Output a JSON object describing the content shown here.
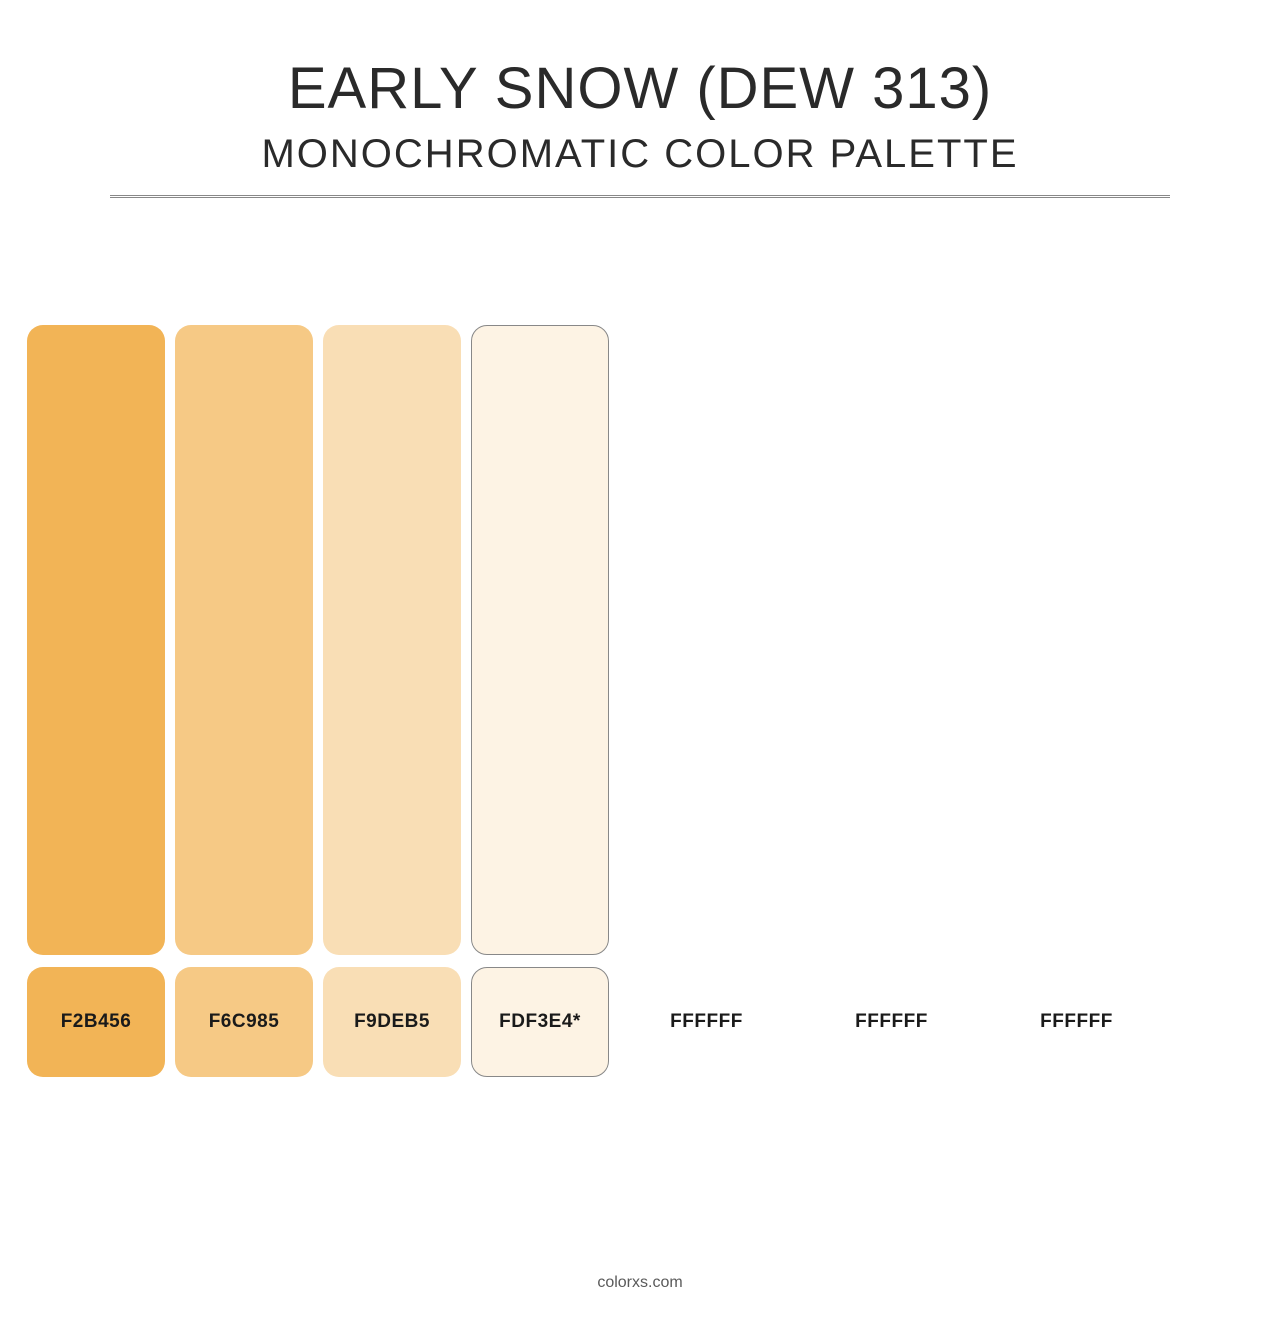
{
  "header": {
    "title": "EARLY SNOW (DEW 313)",
    "subtitle": "MONOCHROMATIC COLOR PALETTE",
    "title_fontsize": 58,
    "subtitle_fontsize": 40,
    "text_color": "#2a2a2a",
    "divider_color": "#888888"
  },
  "palette": {
    "type": "infographic",
    "background_color": "#ffffff",
    "swatch_tall_width": 138,
    "swatch_tall_height": 630,
    "swatch_small_width": 138,
    "swatch_small_height": 110,
    "swatch_border_radius": 16,
    "swatch_gap": 10,
    "label_fontsize": 19,
    "label_fontweight": 700,
    "label_color": "#1a1a1a",
    "border_color": "#888888",
    "plain_cell_widths": [
      175,
      175,
      175
    ],
    "swatches": [
      {
        "hex": "F2B456",
        "fill": "#f2b456",
        "bordered": false,
        "show_tall": true
      },
      {
        "hex": "F6C985",
        "fill": "#f6c985",
        "bordered": false,
        "show_tall": true
      },
      {
        "hex": "F9DEB5",
        "fill": "#f9deb5",
        "bordered": false,
        "show_tall": true
      },
      {
        "hex": "FDF3E4*",
        "fill": "#fdf3e4",
        "bordered": true,
        "show_tall": true
      },
      {
        "hex": "FFFFFF",
        "fill": "#ffffff",
        "bordered": false,
        "show_tall": false
      },
      {
        "hex": "FFFFFF",
        "fill": "#ffffff",
        "bordered": false,
        "show_tall": false
      },
      {
        "hex": "FFFFFF",
        "fill": "#ffffff",
        "bordered": false,
        "show_tall": false
      }
    ]
  },
  "footer": {
    "text": "colorxs.com",
    "fontsize": 16,
    "color": "#5a5a5a"
  }
}
